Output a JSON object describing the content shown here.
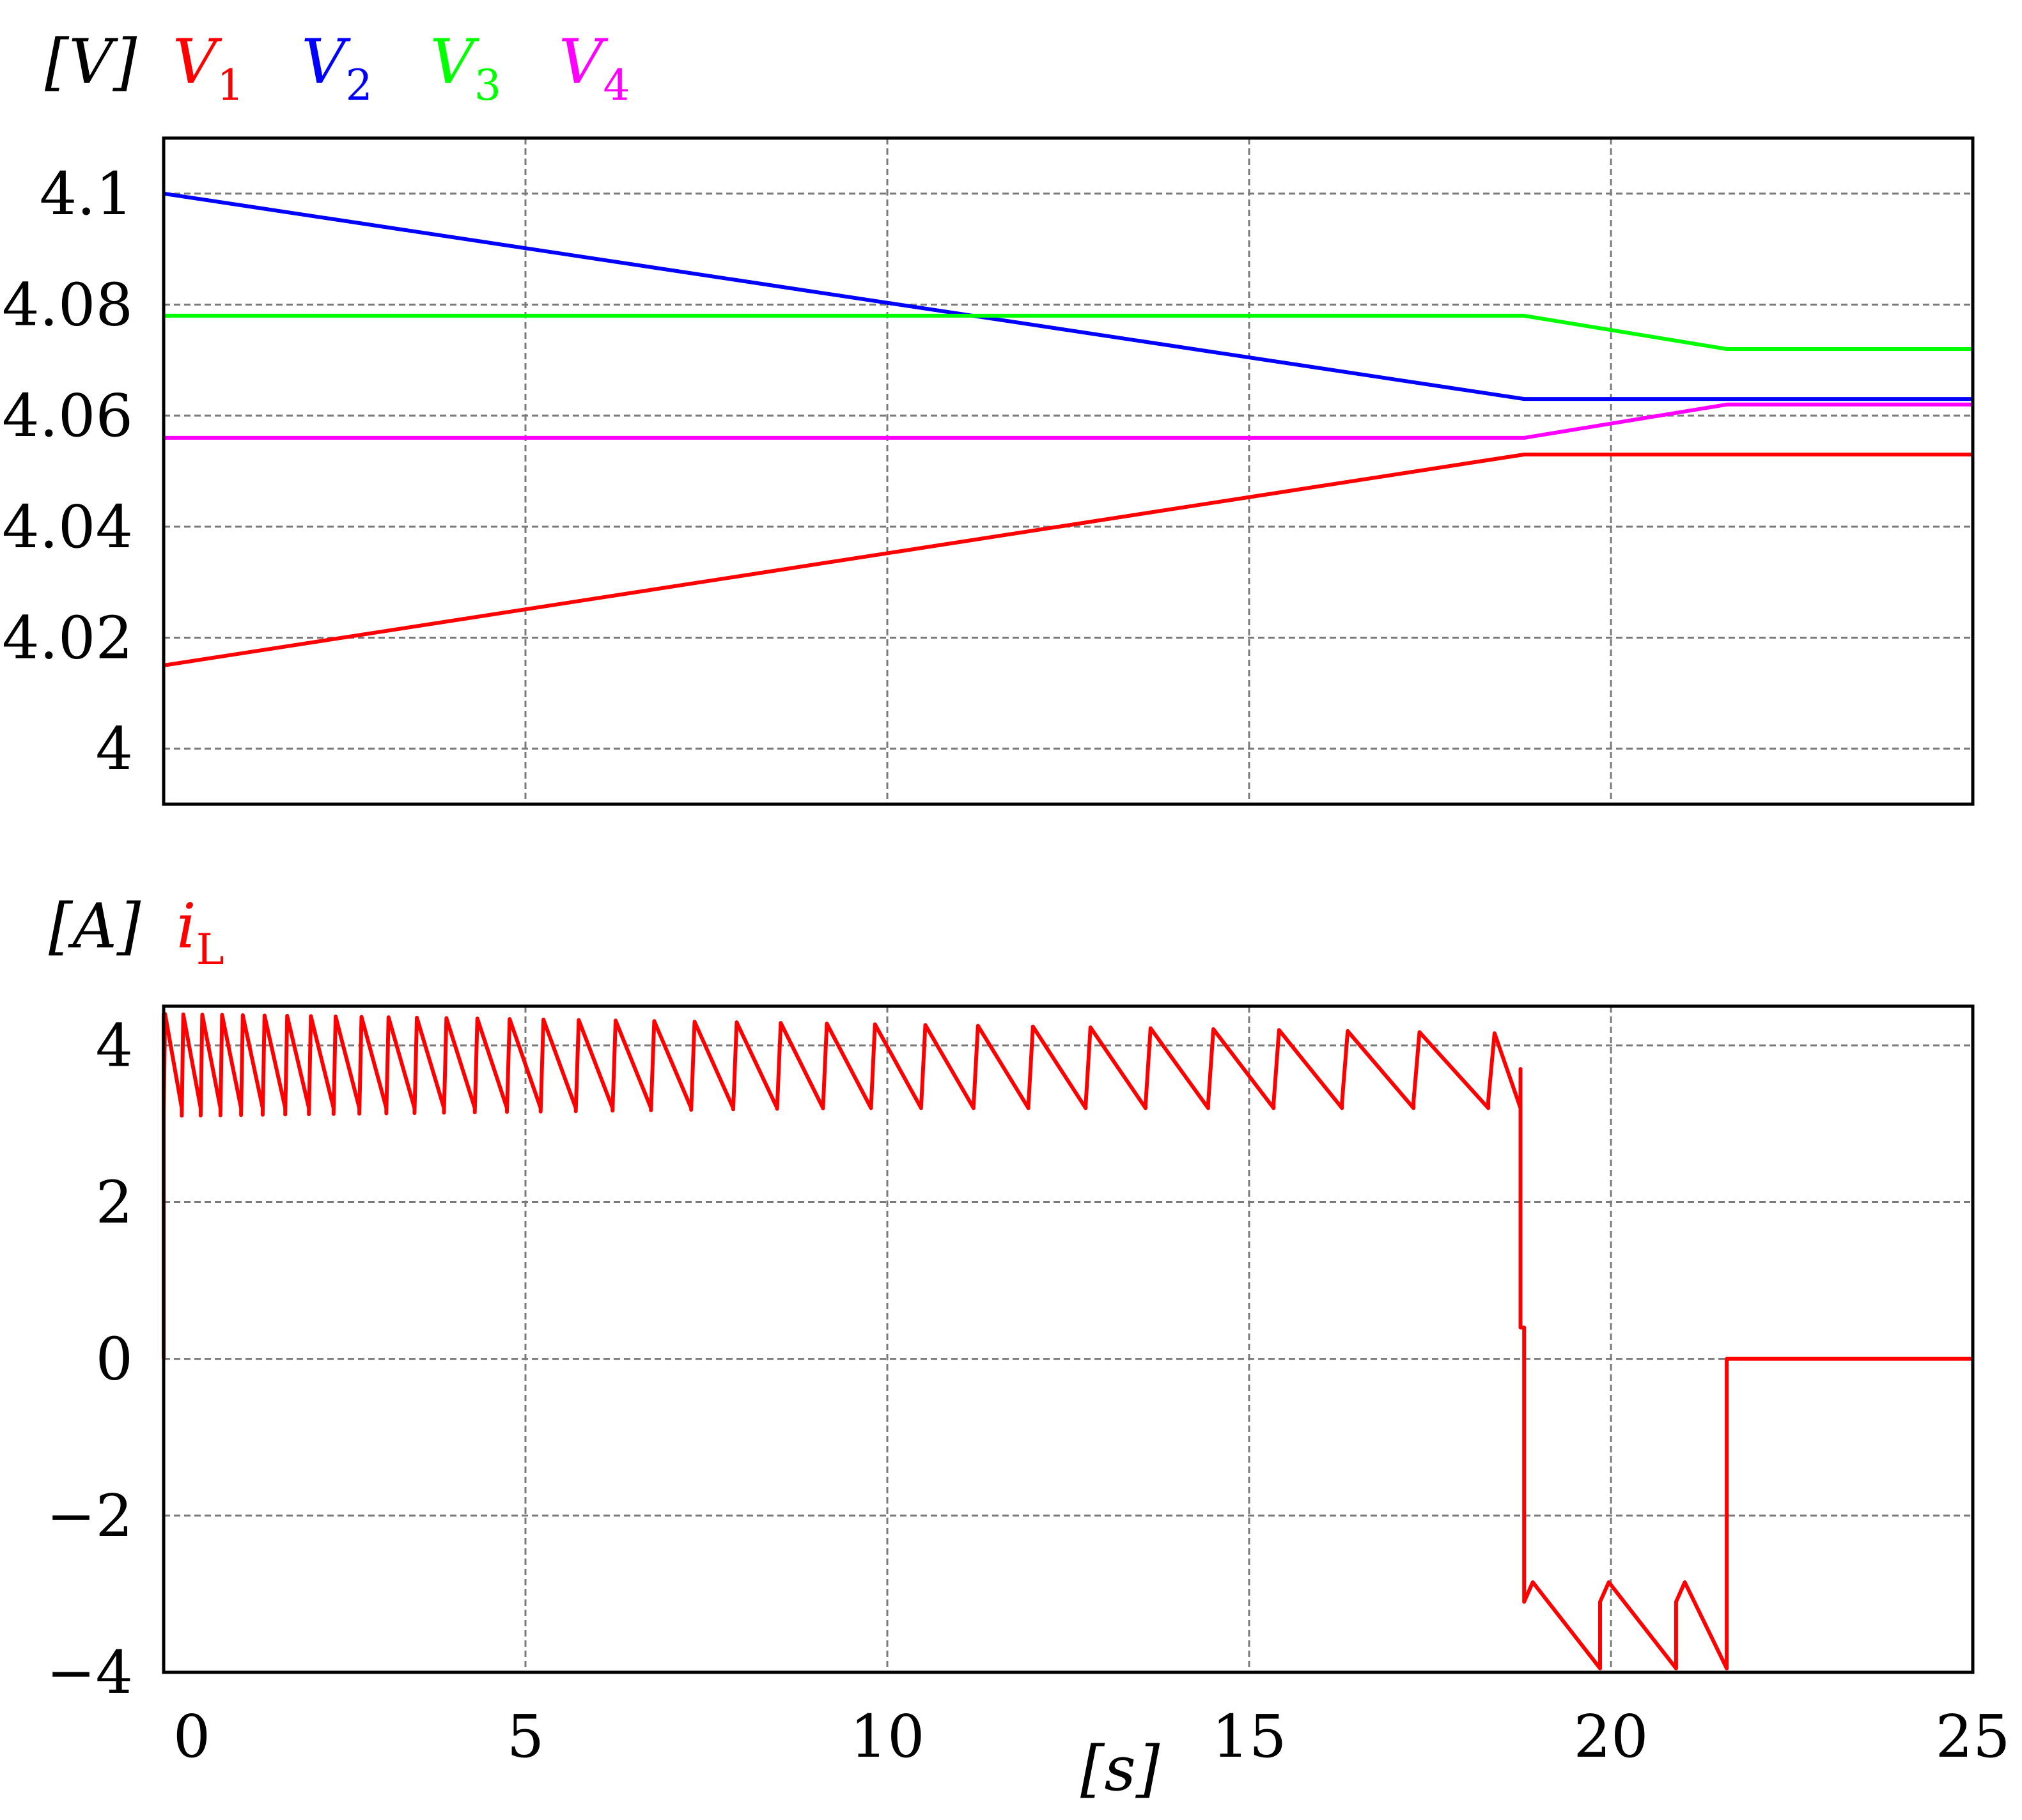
{
  "chart_data": [
    {
      "type": "line",
      "title": "",
      "unit_label": "[V]",
      "legend_placement": "top-left",
      "grid": true,
      "xlim": [
        0,
        25
      ],
      "ylim": [
        3.99,
        4.11
      ],
      "xticks": [
        0,
        5,
        10,
        15,
        20,
        25
      ],
      "xtick_labels": [
        "",
        "",
        "",
        "",
        "",
        ""
      ],
      "yticks": [
        4.0,
        4.02,
        4.04,
        4.06,
        4.08,
        4.1
      ],
      "ytick_labels": [
        "4",
        "4.02",
        "4.04",
        "4.06",
        "4.08",
        "4.1"
      ],
      "series": [
        {
          "name": "V1",
          "label": "V",
          "subscript": "1",
          "color": "#ff0000",
          "x": [
            0,
            18.8,
            25
          ],
          "y": [
            4.015,
            4.053,
            4.053
          ]
        },
        {
          "name": "V2",
          "label": "V",
          "subscript": "2",
          "color": "#0000ff",
          "x": [
            0,
            18.8,
            25
          ],
          "y": [
            4.1,
            4.063,
            4.063
          ]
        },
        {
          "name": "V3",
          "label": "V",
          "subscript": "3",
          "color": "#00ff00",
          "x": [
            0,
            18.8,
            21.6,
            25
          ],
          "y": [
            4.078,
            4.078,
            4.072,
            4.072
          ]
        },
        {
          "name": "V4",
          "label": "V",
          "subscript": "4",
          "color": "#ff00ff",
          "x": [
            0,
            18.8,
            21.6,
            25
          ],
          "y": [
            4.056,
            4.056,
            4.062,
            4.062
          ]
        }
      ]
    },
    {
      "type": "line",
      "title": "",
      "unit_label": "[A]",
      "legend_placement": "top-left",
      "grid": true,
      "xlim": [
        0,
        25
      ],
      "ylim": [
        -4,
        4.5
      ],
      "xticks": [
        0,
        5,
        10,
        15,
        20,
        25
      ],
      "xtick_labels": [
        "0",
        "5",
        "10",
        "15",
        "20",
        "25"
      ],
      "yticks": [
        -4,
        -2,
        0,
        2,
        4
      ],
      "ytick_labels": [
        "−4",
        "−2",
        "0",
        "2",
        "4"
      ],
      "xlabel": "[s]",
      "series": [
        {
          "name": "iL",
          "label": "i",
          "subscript": "L",
          "color": "#ff0000",
          "description": "sawtooth inductor current",
          "phase1": {
            "t_start": 0,
            "t_end": 18.75,
            "high": 4.4,
            "low": 3.1,
            "ramp_up": 0.25,
            "period_start": 0.25,
            "period_end": 1.1,
            "top_start": 4.05,
            "top_end": 3.7
          },
          "transition": {
            "t_from": 18.75,
            "t_to": 18.8,
            "mid_value": 0.4
          },
          "phase2": {
            "t_start": 18.8,
            "t_end": 21.6,
            "period": 1.05,
            "top": -3.1,
            "bottom": -3.95
          },
          "phase3": {
            "t_start": 21.6,
            "t_end": 25,
            "value": 0
          }
        }
      ]
    }
  ]
}
